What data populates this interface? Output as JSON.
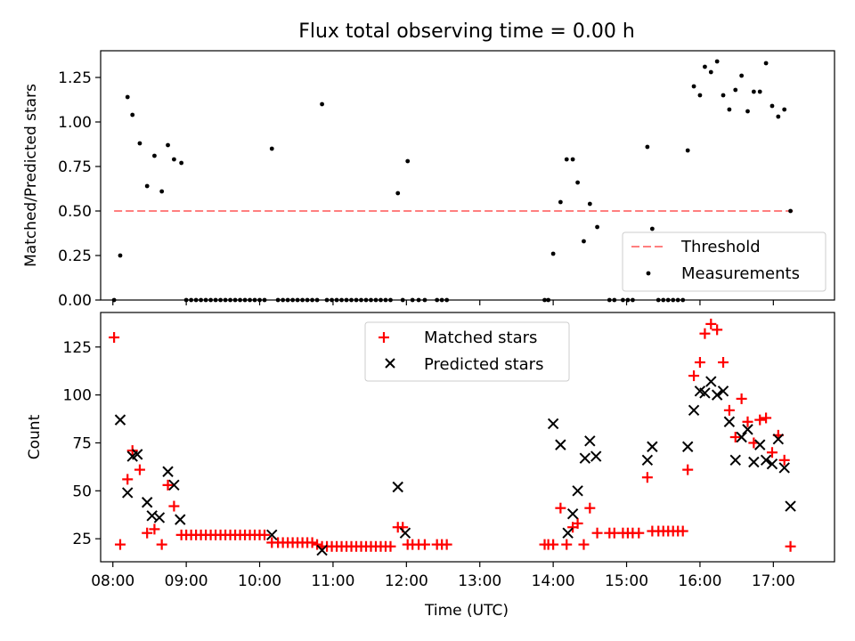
{
  "figure": {
    "title": "Flux total observing time = 0.00 h"
  },
  "chart_data": [
    {
      "type": "scatter",
      "panel": "top",
      "ylabel": "Matched/Predicted stars",
      "xlabel": "",
      "xlim": [
        "07:50",
        "17:50"
      ],
      "ylim": [
        0,
        1.4
      ],
      "yticks": [
        0.0,
        0.25,
        0.5,
        0.75,
        1.0,
        1.25
      ],
      "ytick_labels": [
        "0.00",
        "0.25",
        "0.50",
        "0.75",
        "1.00",
        "1.25"
      ],
      "threshold": {
        "label": "Threshold",
        "value": 0.5,
        "x_start": "08:01",
        "x_end": "17:16",
        "color": "#ff7f7f",
        "style": "dashed"
      },
      "legend": {
        "position": "lower right",
        "entries": [
          "Threshold",
          "Measurements"
        ]
      },
      "series": [
        {
          "name": "Measurements",
          "color": "#000000",
          "marker": "dot",
          "points": [
            [
              "08:01",
              0
            ],
            [
              "08:06",
              0.25
            ],
            [
              "08:12",
              1.14
            ],
            [
              "08:16",
              1.04
            ],
            [
              "08:22",
              0.88
            ],
            [
              "08:28",
              0.64
            ],
            [
              "08:34",
              0.81
            ],
            [
              "08:40",
              0.61
            ],
            [
              "08:45",
              0.87
            ],
            [
              "08:50",
              0.79
            ],
            [
              "08:56",
              0.77
            ],
            [
              "09:00",
              0
            ],
            [
              "09:04",
              0
            ],
            [
              "09:08",
              0
            ],
            [
              "09:12",
              0
            ],
            [
              "09:16",
              0
            ],
            [
              "09:20",
              0
            ],
            [
              "09:24",
              0
            ],
            [
              "09:28",
              0
            ],
            [
              "09:32",
              0
            ],
            [
              "09:36",
              0
            ],
            [
              "09:40",
              0
            ],
            [
              "09:44",
              0
            ],
            [
              "09:48",
              0
            ],
            [
              "09:52",
              0
            ],
            [
              "09:56",
              0
            ],
            [
              "10:00",
              0
            ],
            [
              "10:04",
              0
            ],
            [
              "10:10",
              0.85
            ],
            [
              "10:15",
              0
            ],
            [
              "10:19",
              0
            ],
            [
              "10:23",
              0
            ],
            [
              "10:27",
              0
            ],
            [
              "10:31",
              0
            ],
            [
              "10:35",
              0
            ],
            [
              "10:39",
              0
            ],
            [
              "10:43",
              0
            ],
            [
              "10:47",
              0
            ],
            [
              "10:51",
              1.1
            ],
            [
              "10:55",
              0
            ],
            [
              "10:59",
              0
            ],
            [
              "11:03",
              0
            ],
            [
              "11:07",
              0
            ],
            [
              "11:11",
              0
            ],
            [
              "11:15",
              0
            ],
            [
              "11:19",
              0
            ],
            [
              "11:23",
              0
            ],
            [
              "11:27",
              0
            ],
            [
              "11:31",
              0
            ],
            [
              "11:35",
              0
            ],
            [
              "11:39",
              0
            ],
            [
              "11:43",
              0
            ],
            [
              "11:47",
              0
            ],
            [
              "11:53",
              0.6
            ],
            [
              "11:57",
              0
            ],
            [
              "12:01",
              0.78
            ],
            [
              "12:05",
              0
            ],
            [
              "12:10",
              0
            ],
            [
              "12:15",
              0
            ],
            [
              "12:25",
              0
            ],
            [
              "12:29",
              0
            ],
            [
              "12:33",
              0
            ],
            [
              "13:53",
              0
            ],
            [
              "13:56",
              0
            ],
            [
              "14:00",
              0.26
            ],
            [
              "14:06",
              0.55
            ],
            [
              "14:11",
              0.79
            ],
            [
              "14:16",
              0.79
            ],
            [
              "14:20",
              0.66
            ],
            [
              "14:25",
              0.33
            ],
            [
              "14:30",
              0.54
            ],
            [
              "14:36",
              0.41
            ],
            [
              "14:46",
              0
            ],
            [
              "14:50",
              0
            ],
            [
              "14:57",
              0
            ],
            [
              "15:01",
              0
            ],
            [
              "15:05",
              0
            ],
            [
              "15:17",
              0.86
            ],
            [
              "15:21",
              0.4
            ],
            [
              "15:26",
              0
            ],
            [
              "15:30",
              0
            ],
            [
              "15:34",
              0
            ],
            [
              "15:38",
              0
            ],
            [
              "15:42",
              0
            ],
            [
              "15:46",
              0
            ],
            [
              "15:50",
              0.84
            ],
            [
              "15:55",
              1.2
            ],
            [
              "16:00",
              1.15
            ],
            [
              "16:04",
              1.31
            ],
            [
              "16:09",
              1.28
            ],
            [
              "16:14",
              1.34
            ],
            [
              "16:19",
              1.15
            ],
            [
              "16:24",
              1.07
            ],
            [
              "16:29",
              1.18
            ],
            [
              "16:34",
              1.26
            ],
            [
              "16:39",
              1.06
            ],
            [
              "16:44",
              1.17
            ],
            [
              "16:49",
              1.17
            ],
            [
              "16:54",
              1.33
            ],
            [
              "16:59",
              1.09
            ],
            [
              "17:04",
              1.03
            ],
            [
              "17:09",
              1.07
            ],
            [
              "17:14",
              0.5
            ]
          ]
        }
      ]
    },
    {
      "type": "scatter",
      "panel": "bottom",
      "ylabel": "Count",
      "xlabel": "Time (UTC)",
      "xlim": [
        "07:50",
        "17:50"
      ],
      "ylim": [
        13,
        143
      ],
      "yticks": [
        25,
        50,
        75,
        100,
        125
      ],
      "ytick_labels": [
        "25",
        "50",
        "75",
        "100",
        "125"
      ],
      "xticks": [
        "08:00",
        "09:00",
        "10:00",
        "11:00",
        "12:00",
        "13:00",
        "14:00",
        "15:00",
        "16:00",
        "17:00"
      ],
      "legend": {
        "position": "upper center",
        "entries": [
          "Matched stars",
          "Predicted stars"
        ]
      },
      "series": [
        {
          "name": "Matched stars",
          "color": "#ff0000",
          "marker": "plus",
          "points": [
            [
              "08:01",
              130
            ],
            [
              "08:06",
              22
            ],
            [
              "08:12",
              56
            ],
            [
              "08:16",
              71
            ],
            [
              "08:22",
              61
            ],
            [
              "08:28",
              28
            ],
            [
              "08:34",
              30
            ],
            [
              "08:40",
              22
            ],
            [
              "08:45",
              53
            ],
            [
              "08:50",
              42
            ],
            [
              "08:56",
              27
            ],
            [
              "09:00",
              27
            ],
            [
              "09:04",
              27
            ],
            [
              "09:08",
              27
            ],
            [
              "09:12",
              27
            ],
            [
              "09:16",
              27
            ],
            [
              "09:20",
              27
            ],
            [
              "09:24",
              27
            ],
            [
              "09:28",
              27
            ],
            [
              "09:32",
              27
            ],
            [
              "09:36",
              27
            ],
            [
              "09:40",
              27
            ],
            [
              "09:44",
              27
            ],
            [
              "09:48",
              27
            ],
            [
              "09:52",
              27
            ],
            [
              "09:56",
              27
            ],
            [
              "10:00",
              27
            ],
            [
              "10:04",
              27
            ],
            [
              "10:10",
              23
            ],
            [
              "10:15",
              23
            ],
            [
              "10:19",
              23
            ],
            [
              "10:23",
              23
            ],
            [
              "10:27",
              23
            ],
            [
              "10:31",
              23
            ],
            [
              "10:35",
              23
            ],
            [
              "10:39",
              23
            ],
            [
              "10:43",
              23
            ],
            [
              "10:47",
              22
            ],
            [
              "10:51",
              21
            ],
            [
              "10:55",
              21
            ],
            [
              "10:59",
              21
            ],
            [
              "11:03",
              21
            ],
            [
              "11:07",
              21
            ],
            [
              "11:11",
              21
            ],
            [
              "11:15",
              21
            ],
            [
              "11:19",
              21
            ],
            [
              "11:23",
              21
            ],
            [
              "11:27",
              21
            ],
            [
              "11:31",
              21
            ],
            [
              "11:35",
              21
            ],
            [
              "11:39",
              21
            ],
            [
              "11:43",
              21
            ],
            [
              "11:47",
              21
            ],
            [
              "11:53",
              31
            ],
            [
              "11:57",
              31
            ],
            [
              "12:01",
              22
            ],
            [
              "12:05",
              22
            ],
            [
              "12:10",
              22
            ],
            [
              "12:15",
              22
            ],
            [
              "12:25",
              22
            ],
            [
              "12:29",
              22
            ],
            [
              "12:33",
              22
            ],
            [
              "13:53",
              22
            ],
            [
              "13:56",
              22
            ],
            [
              "14:00",
              22
            ],
            [
              "14:06",
              41
            ],
            [
              "14:11",
              22
            ],
            [
              "14:16",
              31
            ],
            [
              "14:20",
              33
            ],
            [
              "14:25",
              22
            ],
            [
              "14:30",
              41
            ],
            [
              "14:36",
              28
            ],
            [
              "14:46",
              28
            ],
            [
              "14:50",
              28
            ],
            [
              "14:57",
              28
            ],
            [
              "15:01",
              28
            ],
            [
              "15:05",
              28
            ],
            [
              "15:10",
              28
            ],
            [
              "15:17",
              57
            ],
            [
              "15:21",
              29
            ],
            [
              "15:26",
              29
            ],
            [
              "15:30",
              29
            ],
            [
              "15:34",
              29
            ],
            [
              "15:38",
              29
            ],
            [
              "15:42",
              29
            ],
            [
              "15:46",
              29
            ],
            [
              "15:50",
              61
            ],
            [
              "15:55",
              110
            ],
            [
              "16:00",
              117
            ],
            [
              "16:04",
              132
            ],
            [
              "16:09",
              137
            ],
            [
              "16:14",
              134
            ],
            [
              "16:19",
              117
            ],
            [
              "16:24",
              92
            ],
            [
              "16:29",
              78
            ],
            [
              "16:34",
              98
            ],
            [
              "16:39",
              86
            ],
            [
              "16:44",
              75
            ],
            [
              "16:49",
              87
            ],
            [
              "16:54",
              88
            ],
            [
              "16:59",
              70
            ],
            [
              "17:04",
              79
            ],
            [
              "17:09",
              66
            ],
            [
              "17:14",
              21
            ]
          ]
        },
        {
          "name": "Predicted stars",
          "color": "#000000",
          "marker": "x",
          "points": [
            [
              "08:06",
              87
            ],
            [
              "08:12",
              49
            ],
            [
              "08:16",
              68
            ],
            [
              "08:20",
              69
            ],
            [
              "08:28",
              44
            ],
            [
              "08:32",
              37
            ],
            [
              "08:38",
              36
            ],
            [
              "08:45",
              60
            ],
            [
              "08:50",
              53
            ],
            [
              "08:55",
              35
            ],
            [
              "10:10",
              27
            ],
            [
              "10:51",
              19
            ],
            [
              "11:53",
              52
            ],
            [
              "11:59",
              28
            ],
            [
              "14:00",
              85
            ],
            [
              "14:06",
              74
            ],
            [
              "14:12",
              28
            ],
            [
              "14:16",
              38
            ],
            [
              "14:20",
              50
            ],
            [
              "14:26",
              67
            ],
            [
              "14:30",
              76
            ],
            [
              "14:35",
              68
            ],
            [
              "15:17",
              66
            ],
            [
              "15:21",
              73
            ],
            [
              "15:50",
              73
            ],
            [
              "15:55",
              92
            ],
            [
              "16:00",
              102
            ],
            [
              "16:04",
              101
            ],
            [
              "16:09",
              107
            ],
            [
              "16:14",
              100
            ],
            [
              "16:19",
              102
            ],
            [
              "16:24",
              86
            ],
            [
              "16:29",
              66
            ],
            [
              "16:34",
              78
            ],
            [
              "16:39",
              82
            ],
            [
              "16:44",
              65
            ],
            [
              "16:49",
              74
            ],
            [
              "16:54",
              66
            ],
            [
              "16:59",
              64
            ],
            [
              "17:04",
              77
            ],
            [
              "17:09",
              62
            ],
            [
              "17:14",
              42
            ]
          ]
        }
      ]
    }
  ]
}
